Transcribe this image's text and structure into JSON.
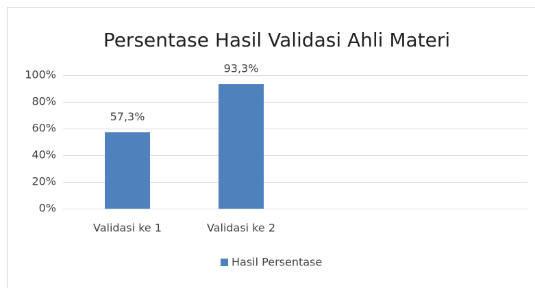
{
  "chart_data": {
    "type": "bar",
    "title": "Persentase Hasil Validasi Ahli Materi",
    "categories": [
      "Validasi ke 1",
      "Validasi ke 2"
    ],
    "series": [
      {
        "name": "Hasil Persentase",
        "color": "#4f81bd",
        "values": [
          57.3,
          93.3
        ],
        "value_labels": [
          "57,3%",
          "93,3%"
        ]
      }
    ],
    "ylim": [
      0,
      100
    ],
    "yticks": [
      {
        "value": 0,
        "label": "0%"
      },
      {
        "value": 20,
        "label": "20%"
      },
      {
        "value": 40,
        "label": "40%"
      },
      {
        "value": 60,
        "label": "60%"
      },
      {
        "value": 80,
        "label": "80%"
      },
      {
        "value": 100,
        "label": "100%"
      }
    ],
    "grid": true,
    "legend": "bottom"
  }
}
